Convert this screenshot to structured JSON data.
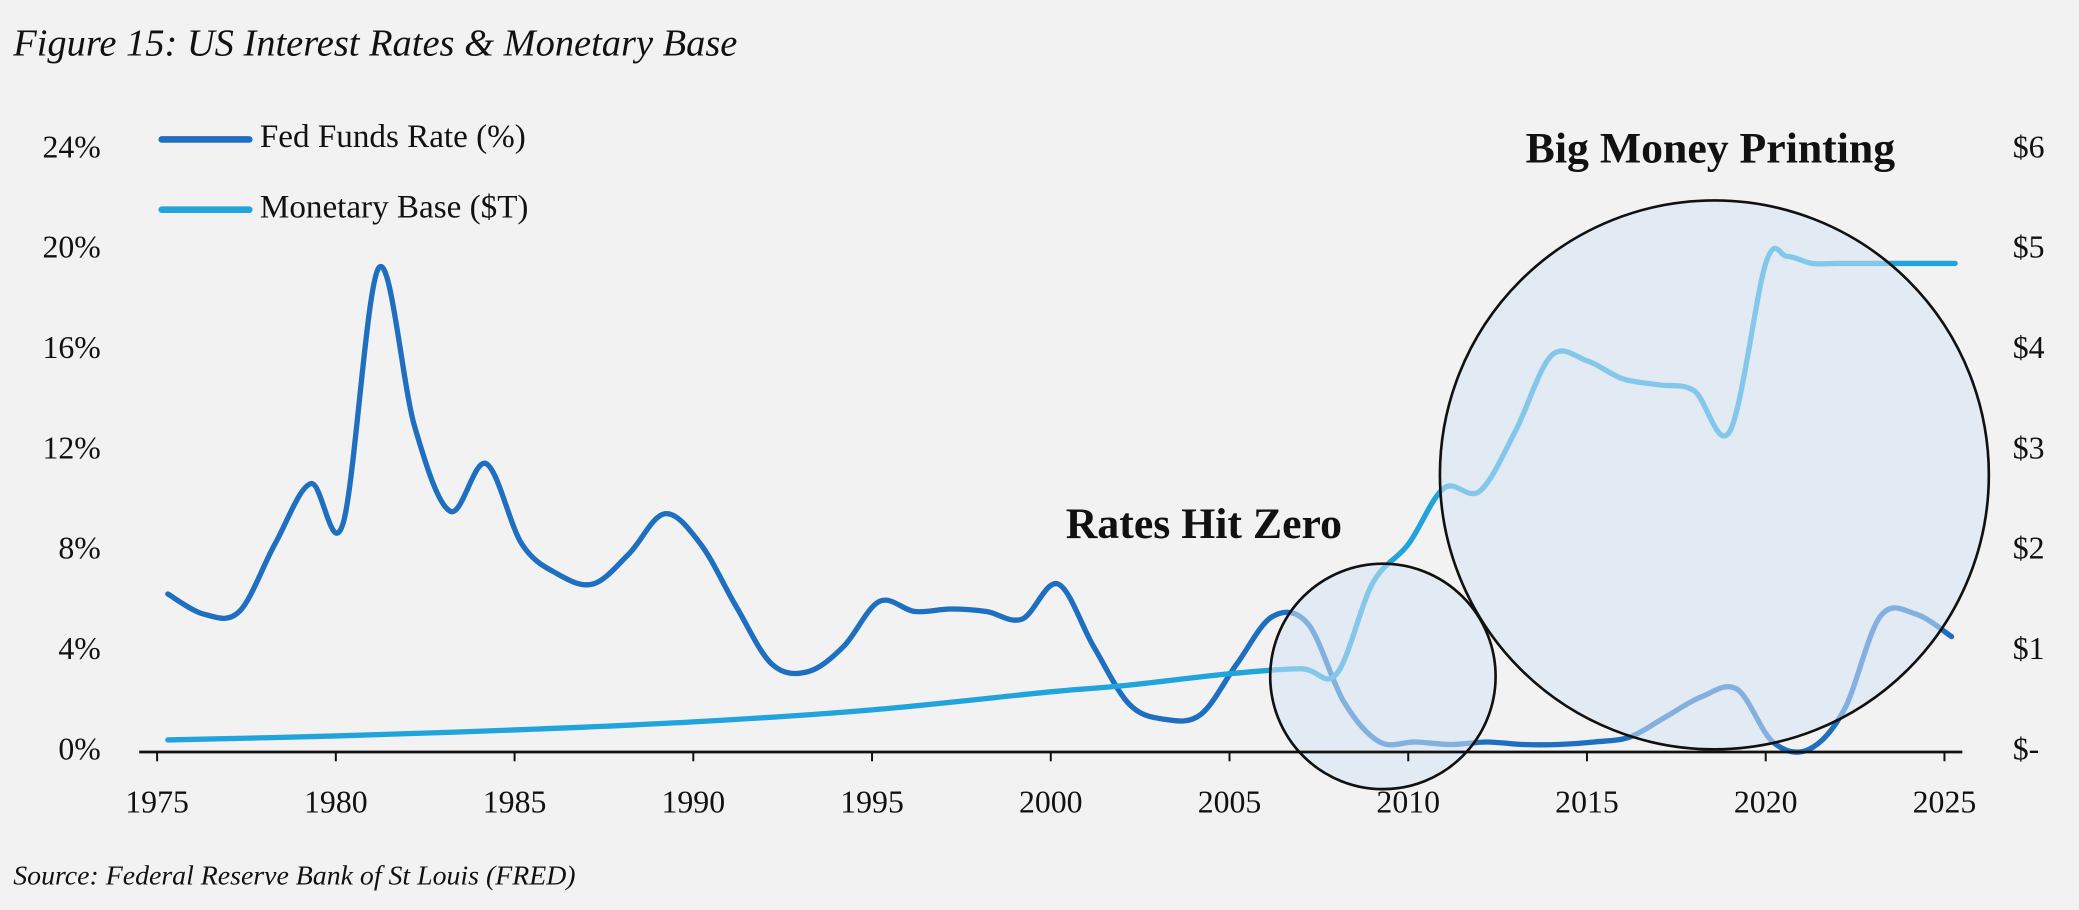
{
  "chart_data": {
    "type": "line",
    "title": "Figure 15: US Interest Rates & Monetary Base",
    "source": "Source: Federal Reserve Bank of St Louis (FRED)",
    "annotations": [
      "Rates Hit Zero",
      "Big Money Printing"
    ],
    "xlim": [
      1974.5,
      2025.5
    ],
    "xticks": [
      1975,
      1980,
      1985,
      1990,
      1995,
      2000,
      2005,
      2010,
      2015,
      2020,
      2025
    ],
    "ylim": [
      0,
      24
    ],
    "yticks": [
      {
        "value": 0,
        "label": "0%"
      },
      {
        "value": 4,
        "label": "4%"
      },
      {
        "value": 8,
        "label": "8%"
      },
      {
        "value": 12,
        "label": "12%"
      },
      {
        "value": 16,
        "label": "16%"
      },
      {
        "value": 20,
        "label": "20%"
      },
      {
        "value": 24,
        "label": "24%"
      }
    ],
    "y2lim": [
      0,
      6
    ],
    "y2ticks": [
      {
        "value": 0,
        "label": "$-"
      },
      {
        "value": 1,
        "label": "$1"
      },
      {
        "value": 2,
        "label": "$2"
      },
      {
        "value": 3,
        "label": "$3"
      },
      {
        "value": 4,
        "label": "$4"
      },
      {
        "value": 5,
        "label": "$5"
      },
      {
        "value": 6,
        "label": "$6"
      }
    ],
    "legend": "top-left",
    "series": [
      {
        "name": "Fed Funds Rate (%)",
        "color": "#1f6fc1",
        "x": [
          1975.3,
          1976.3,
          1977.3,
          1978.3,
          1979.3,
          1980.2,
          1981.2,
          1982.2,
          1983.2,
          1984.2,
          1985.2,
          1986.2,
          1987.2,
          1988.2,
          1989.2,
          1990.2,
          1991.2,
          1992.2,
          1993.2,
          1994.2,
          1995.2,
          1996.2,
          1997.2,
          1998.2,
          1999.2,
          2000.2,
          2001.2,
          2002.2,
          2003.2,
          2004.2,
          2005.2,
          2006.2,
          2007.2,
          2008.2,
          2009.2,
          2010.2,
          2011.2,
          2012.2,
          2013.2,
          2014.2,
          2015.2,
          2016.2,
          2017.2,
          2018.2,
          2019.2,
          2020.2,
          2021.2,
          2022.2,
          2023.2,
          2024.2,
          2025.2
        ],
        "values": [
          6.3,
          5.5,
          5.6,
          8.3,
          10.7,
          9.1,
          19.3,
          13.0,
          9.6,
          11.5,
          8.3,
          7.1,
          6.7,
          7.9,
          9.5,
          8.3,
          5.8,
          3.5,
          3.2,
          4.2,
          6.0,
          5.6,
          5.7,
          5.6,
          5.3,
          6.7,
          4.2,
          1.9,
          1.3,
          1.5,
          3.5,
          5.4,
          5.1,
          2.0,
          0.4,
          0.4,
          0.3,
          0.4,
          0.3,
          0.3,
          0.4,
          0.6,
          1.4,
          2.2,
          2.5,
          0.4,
          0.1,
          1.7,
          5.4,
          5.5,
          4.6
        ]
      },
      {
        "name": "Monetary Base ($T)",
        "color": "#21a3dc",
        "axis": "y2",
        "x": [
          1975.3,
          1980,
          1985,
          1990,
          1995,
          2000,
          2002,
          2005,
          2007,
          2008,
          2009,
          2010,
          2011,
          2012,
          2013,
          2014,
          2015,
          2016,
          2017,
          2018,
          2019,
          2020,
          2020.6,
          2021.3,
          2022,
          2023,
          2024,
          2025.3
        ],
        "values": [
          0.12,
          0.16,
          0.22,
          0.3,
          0.42,
          0.6,
          0.66,
          0.78,
          0.83,
          0.78,
          1.68,
          2.07,
          2.63,
          2.6,
          3.2,
          3.95,
          3.9,
          3.72,
          3.66,
          3.6,
          3.2,
          4.87,
          4.94,
          4.87,
          4.87,
          4.87,
          4.87,
          4.87
        ]
      }
    ]
  }
}
